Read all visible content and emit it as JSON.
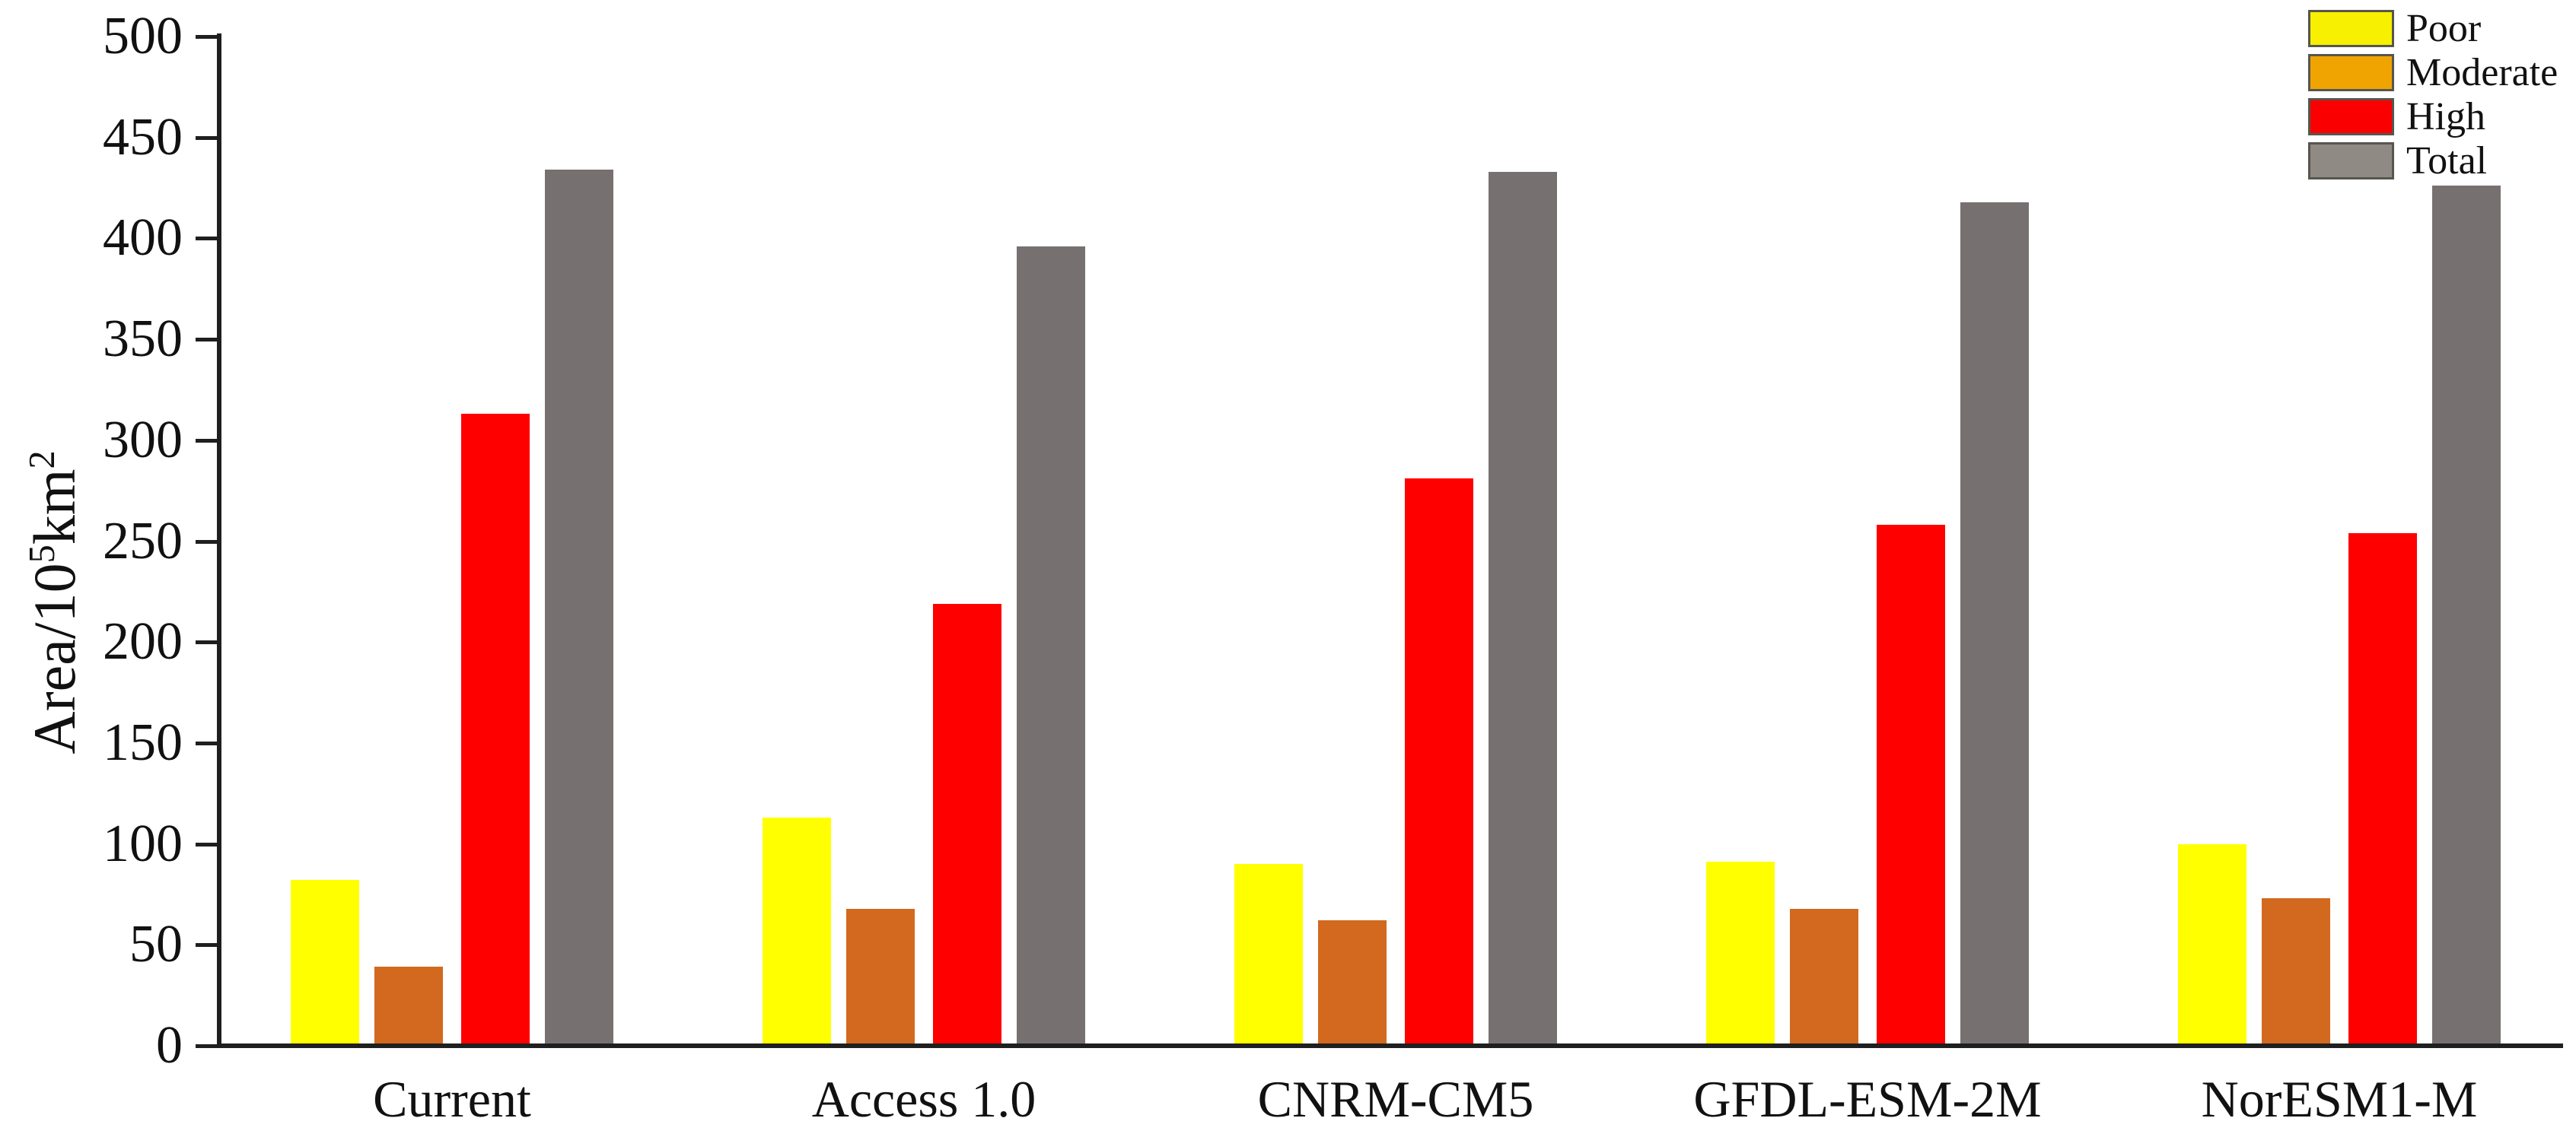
{
  "figure": {
    "background": "#ffffff",
    "axis_color": "#1f1f1f",
    "text_color": "#111111"
  },
  "y_axis": {
    "title_parts": {
      "base": "Area/10",
      "exponent": "5",
      "unit": "km",
      "unit_exponent": "2"
    },
    "title_plain": "Area/10^5km^2",
    "tick_labels": [
      "0",
      "50",
      "100",
      "150",
      "200",
      "250",
      "300",
      "350",
      "400",
      "450",
      "500"
    ],
    "min": 0,
    "max": 500,
    "step": 50
  },
  "legend": {
    "items": [
      {
        "label": "Poor",
        "color": "#f7f000"
      },
      {
        "label": "Moderate",
        "color": "#f0a402"
      },
      {
        "label": "High",
        "color": "#fb0000"
      },
      {
        "label": "Total",
        "color": "#8f8a84"
      }
    ]
  },
  "chart_data": {
    "type": "bar",
    "title": "",
    "xlabel": "",
    "ylabel": "Area/10^5 km^2",
    "ylim": [
      0,
      500
    ],
    "ytick_step": 50,
    "grid": false,
    "legend_position": "top-right",
    "categories": [
      "Current",
      "Access 1.0",
      "CNRM-CM5",
      "GFDL-ESM-2M",
      "NorESM1-M"
    ],
    "series": [
      {
        "name": "Poor",
        "color": "#ffff00",
        "values": [
          82,
          113,
          90,
          91,
          100
        ]
      },
      {
        "name": "Moderate",
        "color": "#d2691e",
        "values": [
          39,
          68,
          62,
          68,
          73
        ]
      },
      {
        "name": "High",
        "color": "#fe0000",
        "values": [
          313,
          219,
          281,
          258,
          254
        ]
      },
      {
        "name": "Total",
        "color": "#767170",
        "values": [
          434,
          396,
          433,
          418,
          426
        ]
      }
    ]
  }
}
